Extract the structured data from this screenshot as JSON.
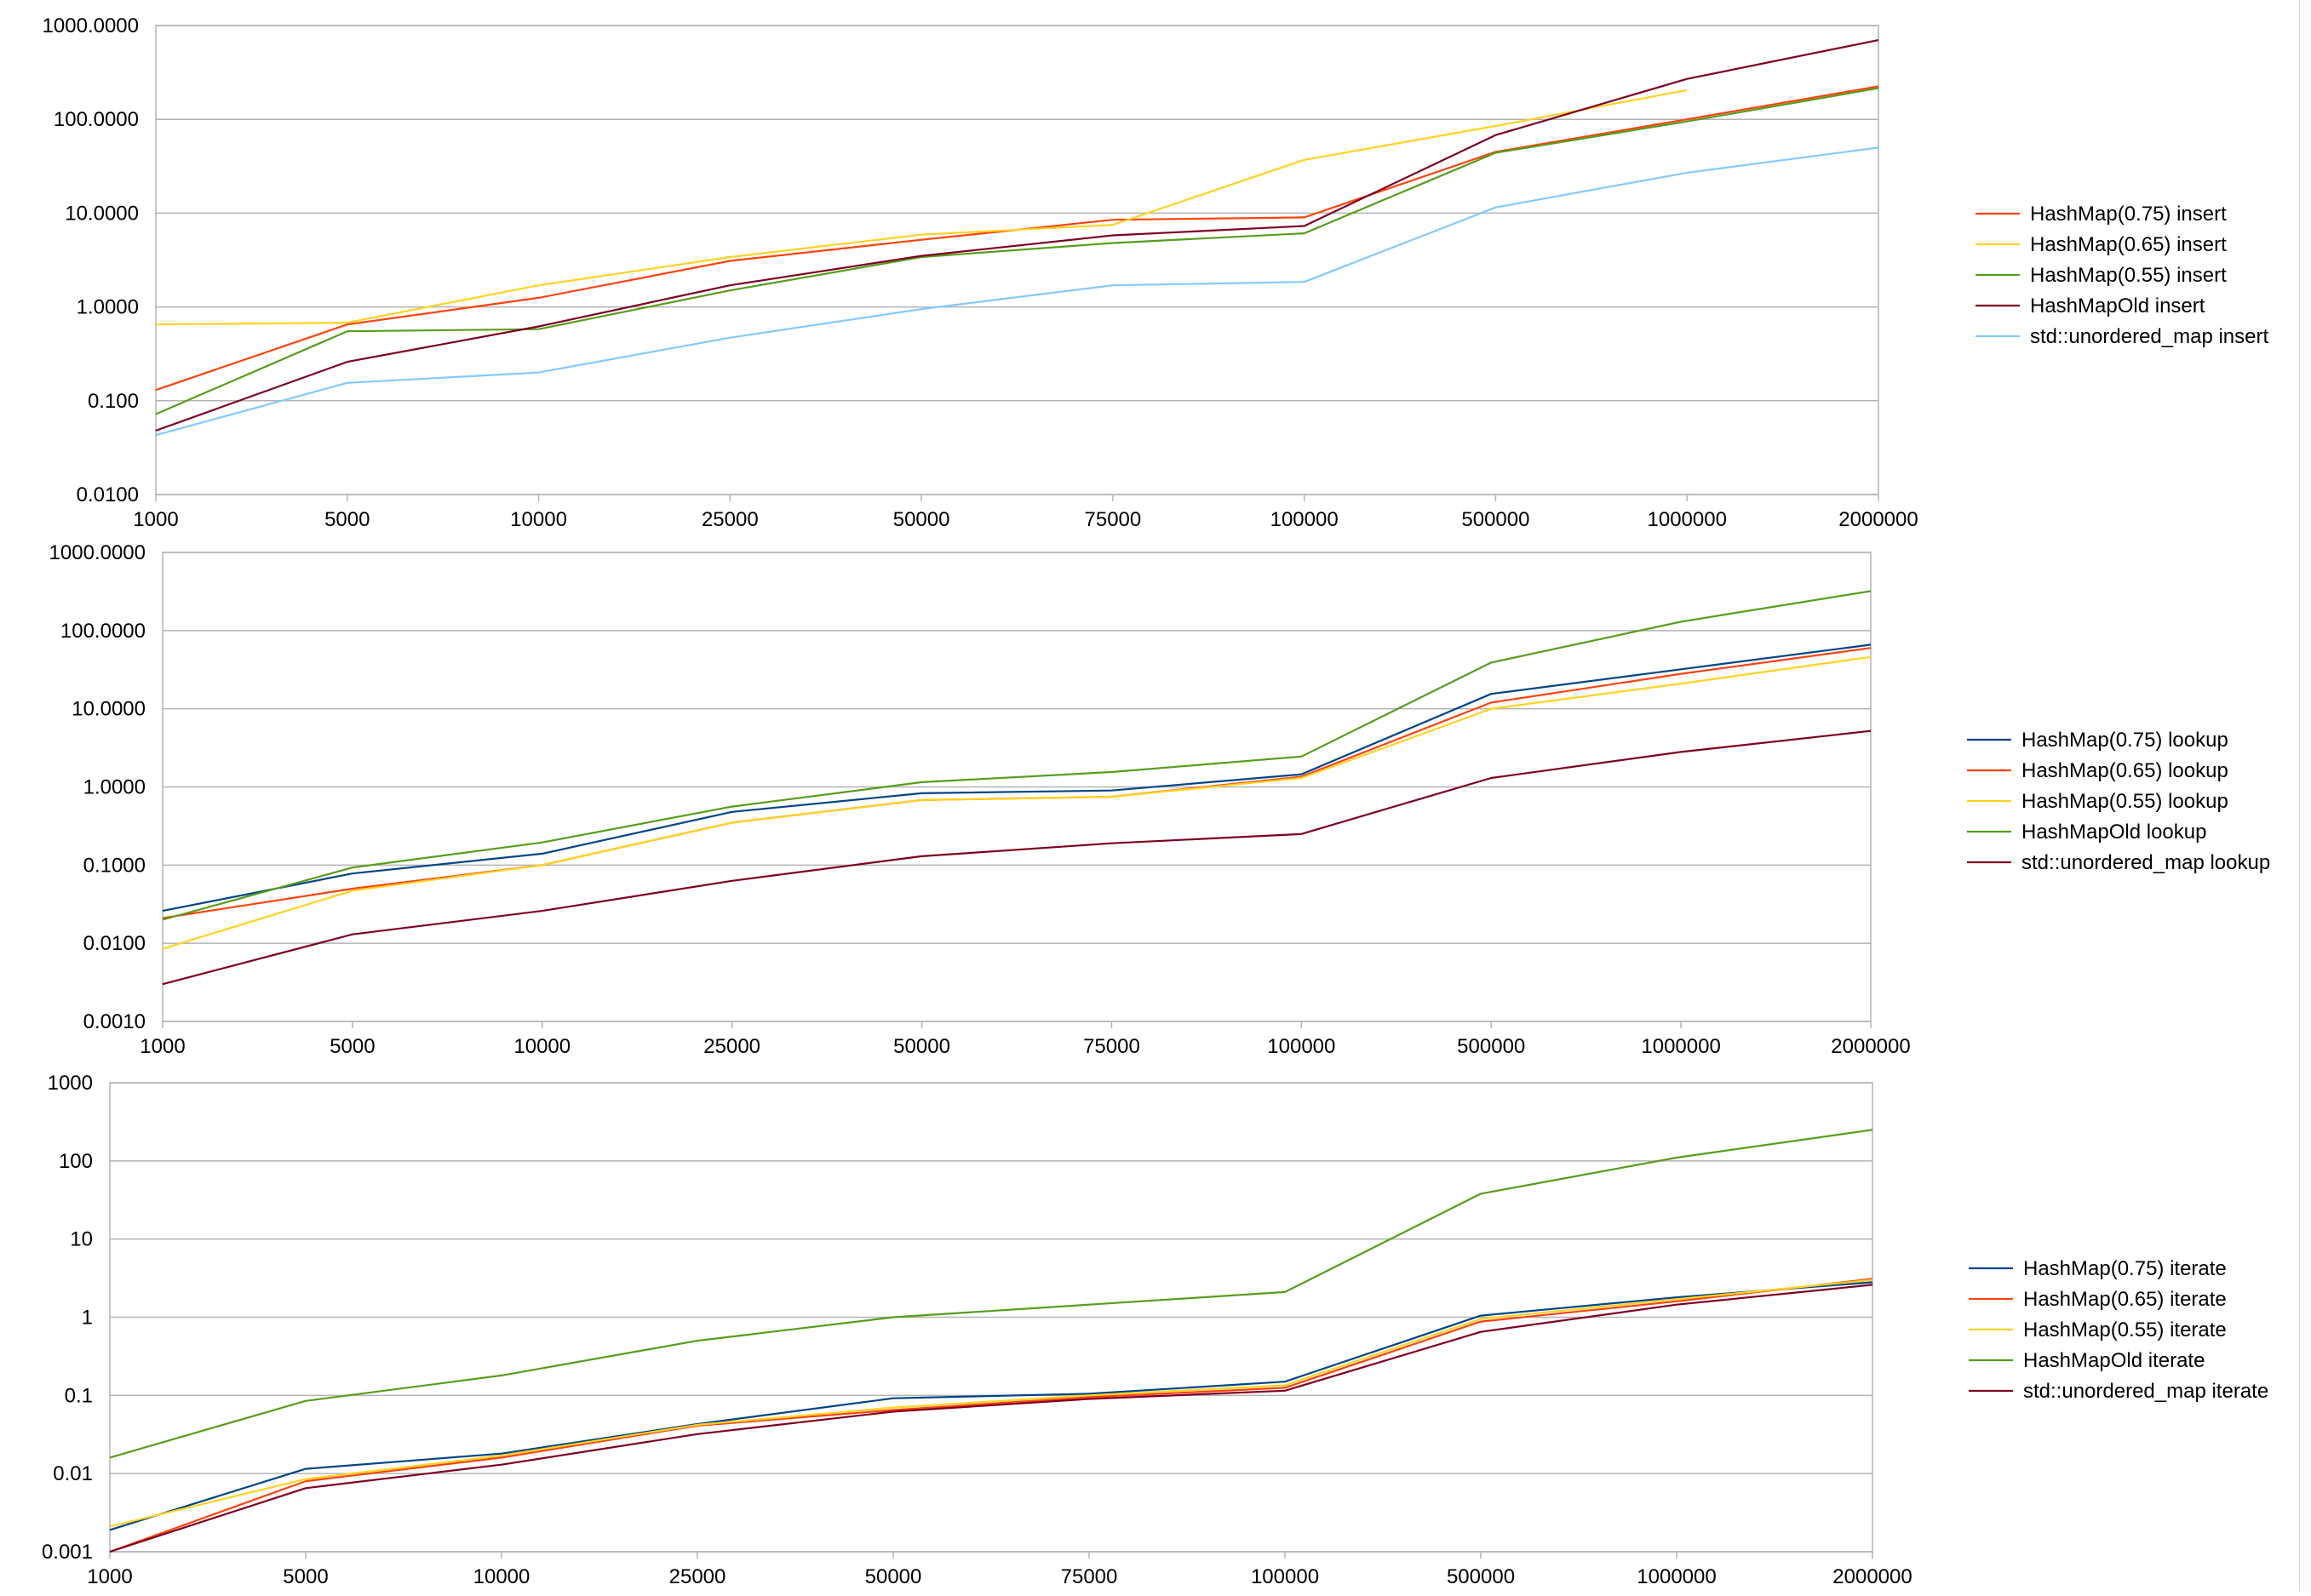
{
  "chart_data": [
    {
      "type": "line",
      "scale": "log",
      "grid": true,
      "legend_position": "right",
      "categories": [
        "1000",
        "5000",
        "10000",
        "25000",
        "50000",
        "75000",
        "100000",
        "500000",
        "1000000",
        "2000000"
      ],
      "y_tick_labels": [
        "0.0100",
        "0.100",
        "1.0000",
        "10.0000",
        "100.0000",
        "1000.0000"
      ],
      "ylim": [
        0.01,
        1000
      ],
      "series": [
        {
          "name": "HashMap(0.75) insert",
          "color": "#ff420e",
          "values": [
            0.13,
            0.65,
            1.25,
            3.1,
            5.2,
            8.5,
            9.0,
            45,
            100,
            225
          ]
        },
        {
          "name": "HashMap(0.65) insert",
          "color": "#ffd320",
          "values": [
            0.65,
            0.68,
            1.7,
            3.4,
            5.9,
            7.5,
            37,
            85,
            205,
            null
          ]
        },
        {
          "name": "HashMap(0.55) insert",
          "color": "#579d1c",
          "values": [
            0.072,
            0.55,
            0.58,
            1.5,
            3.4,
            4.8,
            6.1,
            44,
            95,
            215
          ]
        },
        {
          "name": "HashMapOld insert",
          "color": "#7e0021",
          "values": [
            0.048,
            0.26,
            0.62,
            1.7,
            3.5,
            5.8,
            7.3,
            68,
            270,
            700
          ]
        },
        {
          "name": "std::unordered_map insert",
          "color": "#83caff",
          "values": [
            0.043,
            0.155,
            0.2,
            0.47,
            0.95,
            1.7,
            1.85,
            11.5,
            27,
            50
          ]
        }
      ]
    },
    {
      "type": "line",
      "scale": "log",
      "grid": true,
      "legend_position": "right",
      "categories": [
        "1000",
        "5000",
        "10000",
        "25000",
        "50000",
        "75000",
        "100000",
        "500000",
        "1000000",
        "2000000"
      ],
      "y_tick_labels": [
        "0.0010",
        "0.0100",
        "0.1000",
        "1.0000",
        "10.0000",
        "100.0000",
        "1000.0000"
      ],
      "ylim": [
        0.001,
        1000
      ],
      "series": [
        {
          "name": "HashMap(0.75) lookup",
          "color": "#004586",
          "values": [
            0.026,
            0.078,
            0.14,
            0.48,
            0.83,
            0.9,
            1.45,
            15.5,
            32,
            66
          ]
        },
        {
          "name": "HashMap(0.65) lookup",
          "color": "#ff420e",
          "values": [
            0.021,
            0.05,
            0.1,
            0.35,
            0.68,
            0.75,
            1.35,
            12,
            28,
            60
          ]
        },
        {
          "name": "HashMap(0.55) lookup",
          "color": "#ffd320",
          "values": [
            0.0085,
            0.047,
            0.1,
            0.35,
            0.68,
            0.75,
            1.3,
            10,
            21,
            46
          ]
        },
        {
          "name": "HashMapOld lookup",
          "color": "#579d1c",
          "values": [
            0.02,
            0.093,
            0.195,
            0.56,
            1.15,
            1.55,
            2.45,
            39,
            130,
            320
          ]
        },
        {
          "name": "std::unordered_map lookup",
          "color": "#7e0021",
          "values": [
            0.003,
            0.013,
            0.026,
            0.063,
            0.13,
            0.19,
            0.25,
            1.3,
            2.8,
            5.2
          ]
        }
      ]
    },
    {
      "type": "line",
      "scale": "log",
      "grid": true,
      "legend_position": "right",
      "categories": [
        "1000",
        "5000",
        "10000",
        "25000",
        "50000",
        "75000",
        "100000",
        "500000",
        "1000000",
        "2000000"
      ],
      "y_tick_labels": [
        "0.001",
        "0.01",
        "0.1",
        "1",
        "10",
        "100",
        "1000"
      ],
      "ylim": [
        0.001,
        1000
      ],
      "series": [
        {
          "name": "HashMap(0.75) iterate",
          "color": "#004586",
          "values": [
            0.0019,
            0.0115,
            0.018,
            0.043,
            0.092,
            0.105,
            0.15,
            1.05,
            1.8,
            2.8
          ]
        },
        {
          "name": "HashMap(0.65) iterate",
          "color": "#ff420e",
          "values": [
            0.001,
            0.008,
            0.016,
            0.041,
            0.065,
            0.095,
            0.125,
            0.88,
            1.6,
            3.1
          ]
        },
        {
          "name": "HashMap(0.55) iterate",
          "color": "#ffd320",
          "values": [
            0.0021,
            0.0085,
            0.017,
            0.042,
            0.07,
            0.1,
            0.135,
            0.95,
            1.7,
            3.0
          ]
        },
        {
          "name": "HashMapOld iterate",
          "color": "#579d1c",
          "values": [
            0.016,
            0.085,
            0.18,
            0.5,
            1.0,
            1.45,
            2.1,
            38,
            110,
            250
          ]
        },
        {
          "name": "std::unordered_map iterate",
          "color": "#7e0021",
          "values": [
            0.001,
            0.0065,
            0.013,
            0.032,
            0.062,
            0.09,
            0.115,
            0.65,
            1.45,
            2.6
          ]
        }
      ]
    }
  ]
}
